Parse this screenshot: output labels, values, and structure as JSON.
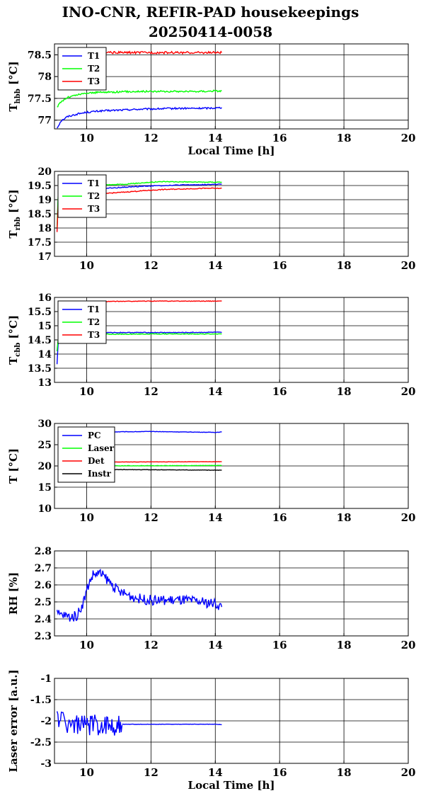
{
  "figure": {
    "title_line1": "INO-CNR, REFIR-PAD housekeepings",
    "title_line2": "20250414-0058"
  },
  "chart_data": [
    {
      "type": "line",
      "ylabel": "T_hbb [°C]",
      "xlabel": "Local Time [h]",
      "xlim": [
        9,
        20
      ],
      "ylim": [
        76.8,
        78.75
      ],
      "x_ticks": [
        10,
        12,
        14,
        16,
        18,
        20
      ],
      "y_ticks": [
        77,
        77.5,
        78,
        78.5
      ],
      "grid": true,
      "legend": "top-left",
      "series": [
        {
          "name": "T1",
          "color": "#0000ff",
          "noise": 0.02,
          "x": [
            9.08,
            9.2,
            9.4,
            9.7,
            10.0,
            10.4,
            11.0,
            11.6,
            12.2,
            12.8,
            13.4,
            14.0,
            14.2
          ],
          "y": [
            76.82,
            76.98,
            77.08,
            77.14,
            77.18,
            77.21,
            77.23,
            77.25,
            77.26,
            77.27,
            77.27,
            77.28,
            77.29
          ]
        },
        {
          "name": "T2",
          "color": "#00ff00",
          "noise": 0.02,
          "x": [
            9.08,
            9.2,
            9.4,
            9.7,
            10.0,
            10.4,
            11.0,
            11.6,
            12.2,
            12.8,
            13.4,
            14.0,
            14.2
          ],
          "y": [
            77.3,
            77.42,
            77.52,
            77.58,
            77.62,
            77.64,
            77.65,
            77.66,
            77.66,
            77.66,
            77.66,
            77.67,
            77.67
          ]
        },
        {
          "name": "T3",
          "color": "#ff0000",
          "noise": 0.025,
          "x": [
            9.4,
            9.8,
            10.4,
            11.0,
            11.6,
            12.2,
            12.8,
            13.4,
            14.0,
            14.2
          ],
          "y": [
            78.56,
            78.55,
            78.55,
            78.55,
            78.55,
            78.55,
            78.55,
            78.55,
            78.55,
            78.55
          ]
        }
      ]
    },
    {
      "type": "line",
      "ylabel": "T_rbb [°C]",
      "xlabel": "",
      "xlim": [
        9,
        20
      ],
      "ylim": [
        17,
        20
      ],
      "x_ticks": [
        10,
        12,
        14,
        16,
        18,
        20
      ],
      "y_ticks": [
        17,
        17.5,
        18,
        18.5,
        19,
        19.5,
        20
      ],
      "grid": true,
      "legend": "top-left",
      "series": [
        {
          "name": "T1",
          "color": "#0000ff",
          "noise": 0.015,
          "x": [
            9.08,
            9.12,
            9.5,
            10.0,
            10.6,
            11.2,
            11.8,
            12.4,
            13.0,
            13.6,
            14.2
          ],
          "y": [
            17.9,
            19.2,
            19.3,
            19.36,
            19.4,
            19.44,
            19.48,
            19.5,
            19.52,
            19.53,
            19.55
          ]
        },
        {
          "name": "T2",
          "color": "#00ff00",
          "noise": 0.015,
          "x": [
            9.08,
            9.12,
            9.5,
            10.0,
            10.6,
            11.2,
            11.8,
            12.4,
            13.0,
            13.6,
            14.2
          ],
          "y": [
            18.0,
            19.35,
            19.42,
            19.48,
            19.52,
            19.55,
            19.6,
            19.64,
            19.63,
            19.62,
            19.62
          ]
        },
        {
          "name": "T3",
          "color": "#ff0000",
          "noise": 0.015,
          "x": [
            9.08,
            9.12,
            9.5,
            10.0,
            10.6,
            11.2,
            11.8,
            12.4,
            13.0,
            13.6,
            14.2
          ],
          "y": [
            17.85,
            19.0,
            19.1,
            19.17,
            19.22,
            19.27,
            19.32,
            19.36,
            19.38,
            19.4,
            19.4
          ]
        }
      ]
    },
    {
      "type": "line",
      "ylabel": "T_cbb [°C]",
      "xlabel": "",
      "xlim": [
        9,
        20
      ],
      "ylim": [
        13,
        16
      ],
      "x_ticks": [
        10,
        12,
        14,
        16,
        18,
        20
      ],
      "y_ticks": [
        13,
        13.5,
        14,
        14.5,
        15,
        15.5,
        16
      ],
      "grid": true,
      "legend": "top-left",
      "series": [
        {
          "name": "T1",
          "color": "#0000ff",
          "noise": 0.012,
          "x": [
            9.08,
            9.12,
            9.3,
            10.0,
            11.0,
            12.0,
            13.0,
            14.0,
            14.2
          ],
          "y": [
            13.65,
            14.5,
            14.72,
            14.75,
            14.76,
            14.76,
            14.76,
            14.77,
            14.76
          ]
        },
        {
          "name": "T2",
          "color": "#00ff00",
          "noise": 0.012,
          "x": [
            9.08,
            9.12,
            9.3,
            10.0,
            11.0,
            12.0,
            13.0,
            14.0,
            14.2
          ],
          "y": [
            14.1,
            14.6,
            14.68,
            14.7,
            14.7,
            14.71,
            14.71,
            14.71,
            14.71
          ]
        },
        {
          "name": "T3",
          "color": "#ff0000",
          "noise": 0.01,
          "x": [
            9.4,
            10.0,
            11.0,
            12.0,
            13.0,
            14.0,
            14.2
          ],
          "y": [
            15.84,
            15.85,
            15.86,
            15.87,
            15.87,
            15.87,
            15.87
          ]
        }
      ]
    },
    {
      "type": "line",
      "ylabel": "T [°C]",
      "xlabel": "",
      "xlim": [
        9,
        20
      ],
      "ylim": [
        10,
        30
      ],
      "x_ticks": [
        10,
        12,
        14,
        16,
        18,
        20
      ],
      "y_ticks": [
        10,
        15,
        20,
        25,
        30
      ],
      "grid": true,
      "legend": "top-left",
      "series": [
        {
          "name": "PC",
          "color": "#0000ff",
          "noise": 0.05,
          "x": [
            9.4,
            10.5,
            12.0,
            13.0,
            14.0,
            14.2
          ],
          "y": [
            28.0,
            28.0,
            28.1,
            28.0,
            27.9,
            28.0
          ]
        },
        {
          "name": "Laser",
          "color": "#00ff00",
          "noise": 0.05,
          "x": [
            9.4,
            14.2
          ],
          "y": [
            20.0,
            20.1
          ]
        },
        {
          "name": "Det",
          "color": "#ff0000",
          "noise": 0.03,
          "x": [
            9.4,
            14.2
          ],
          "y": [
            20.9,
            21.0
          ]
        },
        {
          "name": "Instr",
          "color": "#000000",
          "noise": 0.05,
          "x": [
            9.4,
            14.2
          ],
          "y": [
            19.2,
            19.0
          ]
        }
      ]
    },
    {
      "type": "line",
      "ylabel": "RH [%]",
      "xlabel": "",
      "xlim": [
        9,
        20
      ],
      "ylim": [
        2.3,
        2.8
      ],
      "x_ticks": [
        10,
        12,
        14,
        16,
        18,
        20
      ],
      "y_ticks": [
        2.3,
        2.4,
        2.5,
        2.6,
        2.7,
        2.8
      ],
      "grid": true,
      "legend": "none",
      "series": [
        {
          "name": "",
          "color": "#0000ff",
          "noise": 0.03,
          "x": [
            9.08,
            9.3,
            9.5,
            9.7,
            9.9,
            10.05,
            10.2,
            10.4,
            10.6,
            10.8,
            11.0,
            11.3,
            11.6,
            12.0,
            12.5,
            13.0,
            13.5,
            14.0,
            14.2
          ],
          "y": [
            2.43,
            2.42,
            2.41,
            2.42,
            2.5,
            2.6,
            2.66,
            2.67,
            2.64,
            2.6,
            2.56,
            2.54,
            2.52,
            2.51,
            2.51,
            2.51,
            2.5,
            2.49,
            2.47
          ]
        }
      ]
    },
    {
      "type": "line",
      "ylabel": "Laser error [a.u.]",
      "xlabel": "Local Time [h]",
      "xlim": [
        9,
        20
      ],
      "ylim": [
        -3,
        -1
      ],
      "x_ticks": [
        10,
        12,
        14,
        16,
        18,
        20
      ],
      "y_ticks": [
        -3,
        -2.5,
        -2,
        -1.5,
        -1
      ],
      "grid": true,
      "legend": "none",
      "series": [
        {
          "name": "",
          "color": "#0000ff",
          "noise": 0.25,
          "x": [
            9.08,
            9.4,
            9.8,
            10.2,
            10.6,
            11.0,
            11.1
          ],
          "y": [
            -1.9,
            -2.05,
            -2.1,
            -2.1,
            -2.1,
            -2.1,
            -2.1
          ]
        },
        {
          "name": "",
          "color": "#0000ff",
          "noise": 0.004,
          "x": [
            11.1,
            12.0,
            13.0,
            14.0,
            14.2
          ],
          "y": [
            -2.08,
            -2.08,
            -2.08,
            -2.08,
            -2.09
          ]
        }
      ]
    }
  ]
}
